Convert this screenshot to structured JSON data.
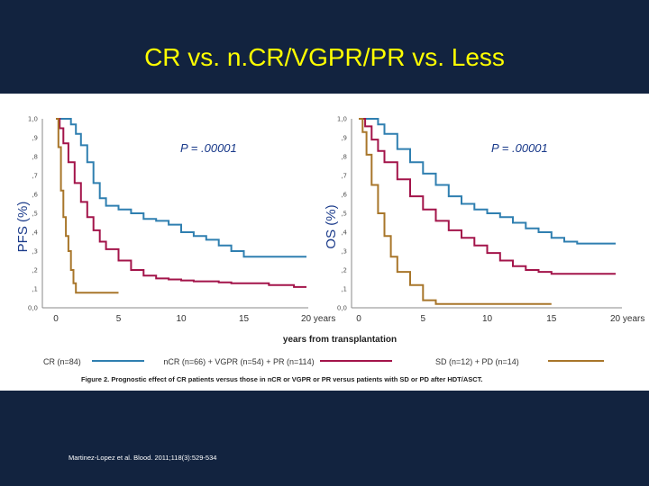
{
  "title": "CR vs. n.CR/VGPR/PR vs. Less",
  "citation": "Martinez-Lopez et al. Blood. 2011;118(3):529-534",
  "caption": "Figure 2. Prognostic effect of CR patients versus those in nCR or VGPR or PR versus patients with SD or PD after HDT/ASCT.",
  "shared_xlabel": "years from transplantation",
  "legend": [
    {
      "label": "CR (n=84)",
      "color": "#2f7fb0"
    },
    {
      "label": "nCR (n=66) + VGPR (n=54) + PR (n=114)",
      "color": "#a3144a"
    },
    {
      "label": "SD (n=12) + PD (n=14)",
      "color": "#a8762a"
    }
  ],
  "chart_data": [
    {
      "type": "line",
      "title": "",
      "ylabel": "PFS (%)",
      "xlabel": "years from transplantation",
      "annotation": "P = .00001",
      "xlim": [
        0,
        20
      ],
      "ylim": [
        0,
        1
      ],
      "xticks": [
        "0",
        "5",
        "10",
        "15",
        "20 years"
      ],
      "yticks": [
        "0,0",
        ",1",
        ",2",
        ",3",
        ",4",
        ",5",
        ",6",
        ",7",
        ",8",
        ",9",
        "1,0"
      ],
      "series": [
        {
          "name": "CR (n=84)",
          "color": "#2f7fb0",
          "x": [
            0,
            0.8,
            1.2,
            1.6,
            2,
            2.5,
            3,
            3.5,
            4,
            5,
            6,
            7,
            8,
            9,
            10,
            11,
            12,
            13,
            14,
            15,
            20
          ],
          "y": [
            1.0,
            1.0,
            0.97,
            0.92,
            0.86,
            0.77,
            0.66,
            0.58,
            0.54,
            0.52,
            0.5,
            0.47,
            0.46,
            0.44,
            0.4,
            0.38,
            0.36,
            0.33,
            0.3,
            0.27,
            0.27
          ]
        },
        {
          "name": "nCR (n=66) + VGPR (n=54) + PR (n=114)",
          "color": "#a3144a",
          "x": [
            0,
            0.3,
            0.6,
            1,
            1.5,
            2,
            2.5,
            3,
            3.5,
            4,
            5,
            6,
            7,
            8,
            9,
            10,
            11,
            12,
            13,
            14,
            15,
            16,
            17,
            18,
            19,
            20
          ],
          "y": [
            1.0,
            0.95,
            0.87,
            0.77,
            0.66,
            0.56,
            0.48,
            0.41,
            0.35,
            0.31,
            0.25,
            0.2,
            0.17,
            0.155,
            0.15,
            0.145,
            0.14,
            0.14,
            0.135,
            0.13,
            0.13,
            0.13,
            0.12,
            0.12,
            0.11,
            0.11
          ]
        },
        {
          "name": "SD (n=12) + PD (n=14)",
          "color": "#a8762a",
          "x": [
            0,
            0.2,
            0.4,
            0.6,
            0.8,
            1,
            1.2,
            1.4,
            1.6,
            2,
            2.5,
            3,
            4,
            5
          ],
          "y": [
            1.0,
            0.85,
            0.62,
            0.48,
            0.38,
            0.3,
            0.2,
            0.13,
            0.08,
            0.08,
            0.08,
            0.08,
            0.08,
            0.08
          ]
        }
      ]
    },
    {
      "type": "line",
      "title": "",
      "ylabel": "OS (%)",
      "xlabel": "years from transplantation",
      "annotation": "P = .00001",
      "xlim": [
        0,
        20
      ],
      "ylim": [
        0,
        1
      ],
      "xticks": [
        "0",
        "5",
        "10",
        "15",
        "20 years"
      ],
      "yticks": [
        "0,0",
        ",1",
        ",2",
        ",3",
        ",4",
        ",5",
        ",6",
        ",7",
        ",8",
        ",9",
        "1,0"
      ],
      "series": [
        {
          "name": "CR (n=84)",
          "color": "#2f7fb0",
          "x": [
            0,
            1,
            1.5,
            2,
            3,
            4,
            5,
            6,
            7,
            8,
            9,
            10,
            11,
            12,
            13,
            14,
            15,
            16,
            17,
            18,
            19,
            20
          ],
          "y": [
            1.0,
            1.0,
            0.97,
            0.92,
            0.84,
            0.77,
            0.71,
            0.65,
            0.59,
            0.55,
            0.52,
            0.5,
            0.48,
            0.45,
            0.42,
            0.4,
            0.37,
            0.35,
            0.34,
            0.34,
            0.34,
            0.34
          ]
        },
        {
          "name": "nCR (n=66) + VGPR (n=54) + PR (n=114)",
          "color": "#a3144a",
          "x": [
            0,
            0.5,
            1,
            1.5,
            2,
            3,
            4,
            5,
            6,
            7,
            8,
            9,
            10,
            11,
            12,
            13,
            14,
            15,
            16,
            17,
            18,
            19,
            20
          ],
          "y": [
            1.0,
            0.96,
            0.89,
            0.83,
            0.77,
            0.68,
            0.59,
            0.52,
            0.46,
            0.41,
            0.37,
            0.33,
            0.29,
            0.25,
            0.22,
            0.2,
            0.19,
            0.18,
            0.18,
            0.18,
            0.18,
            0.18,
            0.18
          ]
        },
        {
          "name": "SD (n=12) + PD (n=14)",
          "color": "#a8762a",
          "x": [
            0,
            0.3,
            0.6,
            1,
            1.5,
            2,
            2.5,
            3,
            4,
            5,
            6,
            8,
            10,
            12,
            14,
            15
          ],
          "y": [
            1.0,
            0.93,
            0.81,
            0.65,
            0.5,
            0.38,
            0.27,
            0.19,
            0.12,
            0.04,
            0.02,
            0.02,
            0.02,
            0.02,
            0.02,
            0.02
          ]
        }
      ]
    }
  ]
}
